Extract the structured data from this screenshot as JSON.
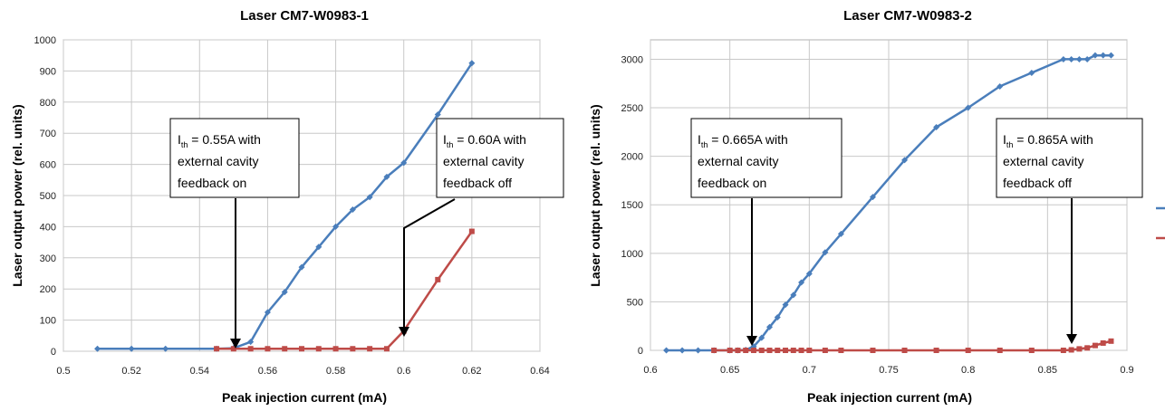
{
  "chart_data": [
    {
      "type": "line",
      "title": "Laser CM7-W0983-1",
      "xlabel": "Peak injection current (mA)",
      "ylabel": "Laser output power (rel. units)",
      "xlim": [
        0.5,
        0.64
      ],
      "ylim": [
        0,
        1000
      ],
      "xticks": [
        "0.5",
        "0.52",
        "0.54",
        "0.56",
        "0.58",
        "0.6",
        "0.62",
        "0.64"
      ],
      "yticks": [
        "0",
        "100",
        "200",
        "300",
        "400",
        "500",
        "600",
        "700",
        "800",
        "900",
        "1000"
      ],
      "grid": true,
      "series": [
        {
          "color": "#4a7ebb",
          "marker": "diamond",
          "x": [
            0.51,
            0.52,
            0.53,
            0.545,
            0.55,
            0.555,
            0.56,
            0.565,
            0.57,
            0.575,
            0.58,
            0.585,
            0.59,
            0.595,
            0.6,
            0.61,
            0.62
          ],
          "y": [
            8,
            8,
            8,
            8,
            10,
            30,
            125,
            190,
            270,
            335,
            400,
            455,
            495,
            560,
            605,
            760,
            925
          ]
        },
        {
          "color": "#be4b48",
          "marker": "square",
          "x": [
            0.545,
            0.55,
            0.555,
            0.56,
            0.565,
            0.57,
            0.575,
            0.58,
            0.585,
            0.59,
            0.595,
            0.6,
            0.61,
            0.62
          ],
          "y": [
            8,
            8,
            8,
            8,
            8,
            8,
            8,
            8,
            8,
            8,
            8,
            65,
            230,
            385
          ]
        }
      ],
      "annotations": [
        {
          "sym": "I",
          "sub": "th",
          "line1": " = 0.55A with",
          "line2": "external cavity",
          "line3": "feedback on"
        },
        {
          "sym": "I",
          "sub": "th",
          "line1": " = 0.60A with",
          "line2": "external cavity",
          "line3": "feedback off"
        }
      ]
    },
    {
      "type": "line",
      "title": "Laser CM7-W0983-2",
      "xlabel": "Peak injection current (mA)",
      "ylabel": "Laser output power (rel. units)",
      "xlim": [
        0.6,
        0.9
      ],
      "ylim": [
        0,
        3200
      ],
      "xticks": [
        "0.6",
        "0.65",
        "0.7",
        "0.75",
        "0.8",
        "0.85",
        "0.9"
      ],
      "yticks": [
        "0",
        "500",
        "1000",
        "1500",
        "2000",
        "2500",
        "3000"
      ],
      "grid": true,
      "series": [
        {
          "color": "#4a7ebb",
          "marker": "diamond",
          "x": [
            0.61,
            0.62,
            0.63,
            0.64,
            0.65,
            0.655,
            0.66,
            0.665,
            0.67,
            0.675,
            0.68,
            0.685,
            0.69,
            0.695,
            0.7,
            0.71,
            0.72,
            0.74,
            0.76,
            0.78,
            0.8,
            0.82,
            0.84,
            0.86,
            0.865,
            0.87,
            0.875,
            0.88,
            0.885,
            0.89
          ],
          "y": [
            0,
            0,
            0,
            0,
            0,
            0,
            5,
            40,
            130,
            240,
            340,
            470,
            570,
            700,
            790,
            1010,
            1200,
            1580,
            1960,
            2300,
            2500,
            2720,
            2860,
            3000,
            3000,
            3000,
            3000,
            3040,
            3040,
            3040
          ]
        },
        {
          "color": "#be4b48",
          "marker": "square",
          "x": [
            0.64,
            0.65,
            0.655,
            0.66,
            0.665,
            0.67,
            0.675,
            0.68,
            0.685,
            0.69,
            0.695,
            0.7,
            0.71,
            0.72,
            0.74,
            0.76,
            0.78,
            0.8,
            0.82,
            0.84,
            0.86,
            0.865,
            0.87,
            0.875,
            0.88,
            0.885,
            0.89
          ],
          "y": [
            0,
            0,
            0,
            0,
            0,
            0,
            0,
            0,
            0,
            0,
            0,
            0,
            0,
            0,
            0,
            0,
            0,
            0,
            0,
            0,
            0,
            5,
            15,
            25,
            50,
            75,
            95
          ]
        }
      ],
      "annotations": [
        {
          "sym": "I",
          "sub": "th",
          "line1": " = 0.665A with",
          "line2": "external cavity",
          "line3": "feedback on"
        },
        {
          "sym": "I",
          "sub": "th",
          "line1": " = 0.865A with",
          "line2": "external cavity",
          "line3": "feedback off"
        }
      ]
    }
  ]
}
